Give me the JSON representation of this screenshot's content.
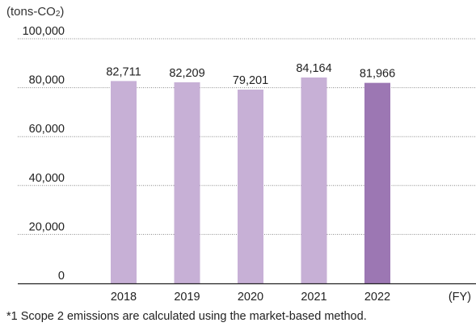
{
  "unit_prefix": "(tons-CO",
  "unit_sub": "2",
  "unit_suffix": ")",
  "x_unit": "(FY)",
  "footnote": "*1 Scope 2 emissions are calculated using the market-based method.",
  "colors": {
    "bar": "#c7b0d6",
    "highlight": "#9c77b3",
    "grid": "#888888",
    "axis": "#222222"
  },
  "chart_data": {
    "type": "bar",
    "categories": [
      "2018",
      "2019",
      "2020",
      "2021",
      "2022"
    ],
    "values": [
      82711,
      82209,
      79201,
      84164,
      81966
    ],
    "value_labels": [
      "82,711",
      "82,209",
      "79,201",
      "84,164",
      "81,966"
    ],
    "ylim": [
      0,
      100000
    ],
    "yticks": [
      0,
      20000,
      40000,
      60000,
      80000,
      100000
    ],
    "ytick_labels": [
      "0",
      "20,000",
      "40,000",
      "60,000",
      "80,000",
      "100,000"
    ],
    "highlight_index": 4,
    "grid": true
  }
}
